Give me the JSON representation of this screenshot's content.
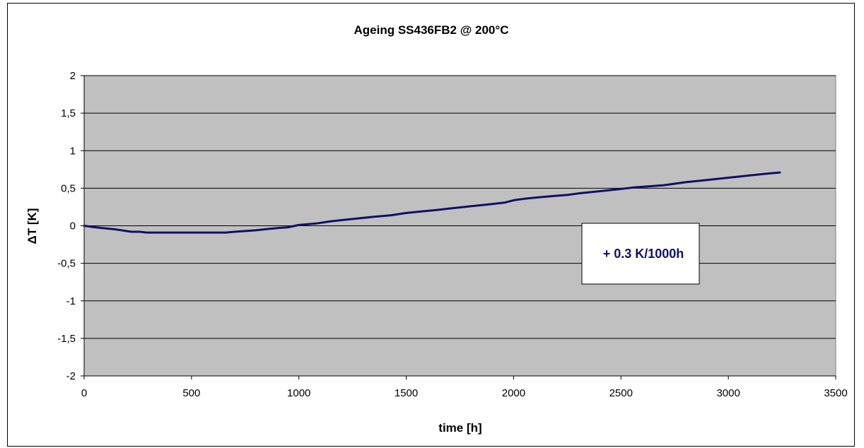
{
  "chart_data": {
    "type": "line",
    "title": "Ageing SS436FB2 @ 200°C",
    "xlabel": "time [h]",
    "ylabel": "ΔT [K]",
    "xlim": [
      0,
      3500
    ],
    "ylim": [
      -2,
      2
    ],
    "xticks": [
      0,
      500,
      1000,
      1500,
      2000,
      2500,
      3000,
      3500
    ],
    "yticks": [
      -2,
      -1.5,
      -1,
      -0.5,
      0,
      0.5,
      1,
      1.5,
      2
    ],
    "xtick_labels": [
      "0",
      "500",
      "1000",
      "1500",
      "2000",
      "2500",
      "3000",
      "3500"
    ],
    "ytick_labels": [
      "-2",
      "-1,5",
      "-1",
      "-0,5",
      "0",
      "0,5",
      "1",
      "1,5",
      "2"
    ],
    "grid": true,
    "legend": "none",
    "annotation": "+ 0.3 K/1000h",
    "colors": {
      "plot_bg": "#c0c0c0",
      "line": "#101066",
      "grid": "#000000"
    },
    "series": [
      {
        "x": [
          0,
          50,
          150,
          220,
          260,
          290,
          400,
          500,
          600,
          660,
          700,
          800,
          900,
          950,
          1000,
          1080,
          1150,
          1250,
          1350,
          1430,
          1500,
          1570,
          1640,
          1700,
          1800,
          1900,
          1960,
          2000,
          2050,
          2120,
          2200,
          2250,
          2300,
          2400,
          2500,
          2560,
          2700,
          2800,
          2900,
          3000,
          3100,
          3200,
          3240
        ],
        "y": [
          0,
          -0.02,
          -0.05,
          -0.08,
          -0.08,
          -0.09,
          -0.09,
          -0.09,
          -0.09,
          -0.09,
          -0.08,
          -0.06,
          -0.03,
          -0.02,
          0.01,
          0.03,
          0.06,
          0.09,
          0.12,
          0.14,
          0.17,
          0.19,
          0.21,
          0.23,
          0.26,
          0.29,
          0.31,
          0.34,
          0.36,
          0.38,
          0.4,
          0.41,
          0.43,
          0.46,
          0.49,
          0.51,
          0.54,
          0.58,
          0.61,
          0.64,
          0.67,
          0.7,
          0.71
        ]
      }
    ]
  }
}
